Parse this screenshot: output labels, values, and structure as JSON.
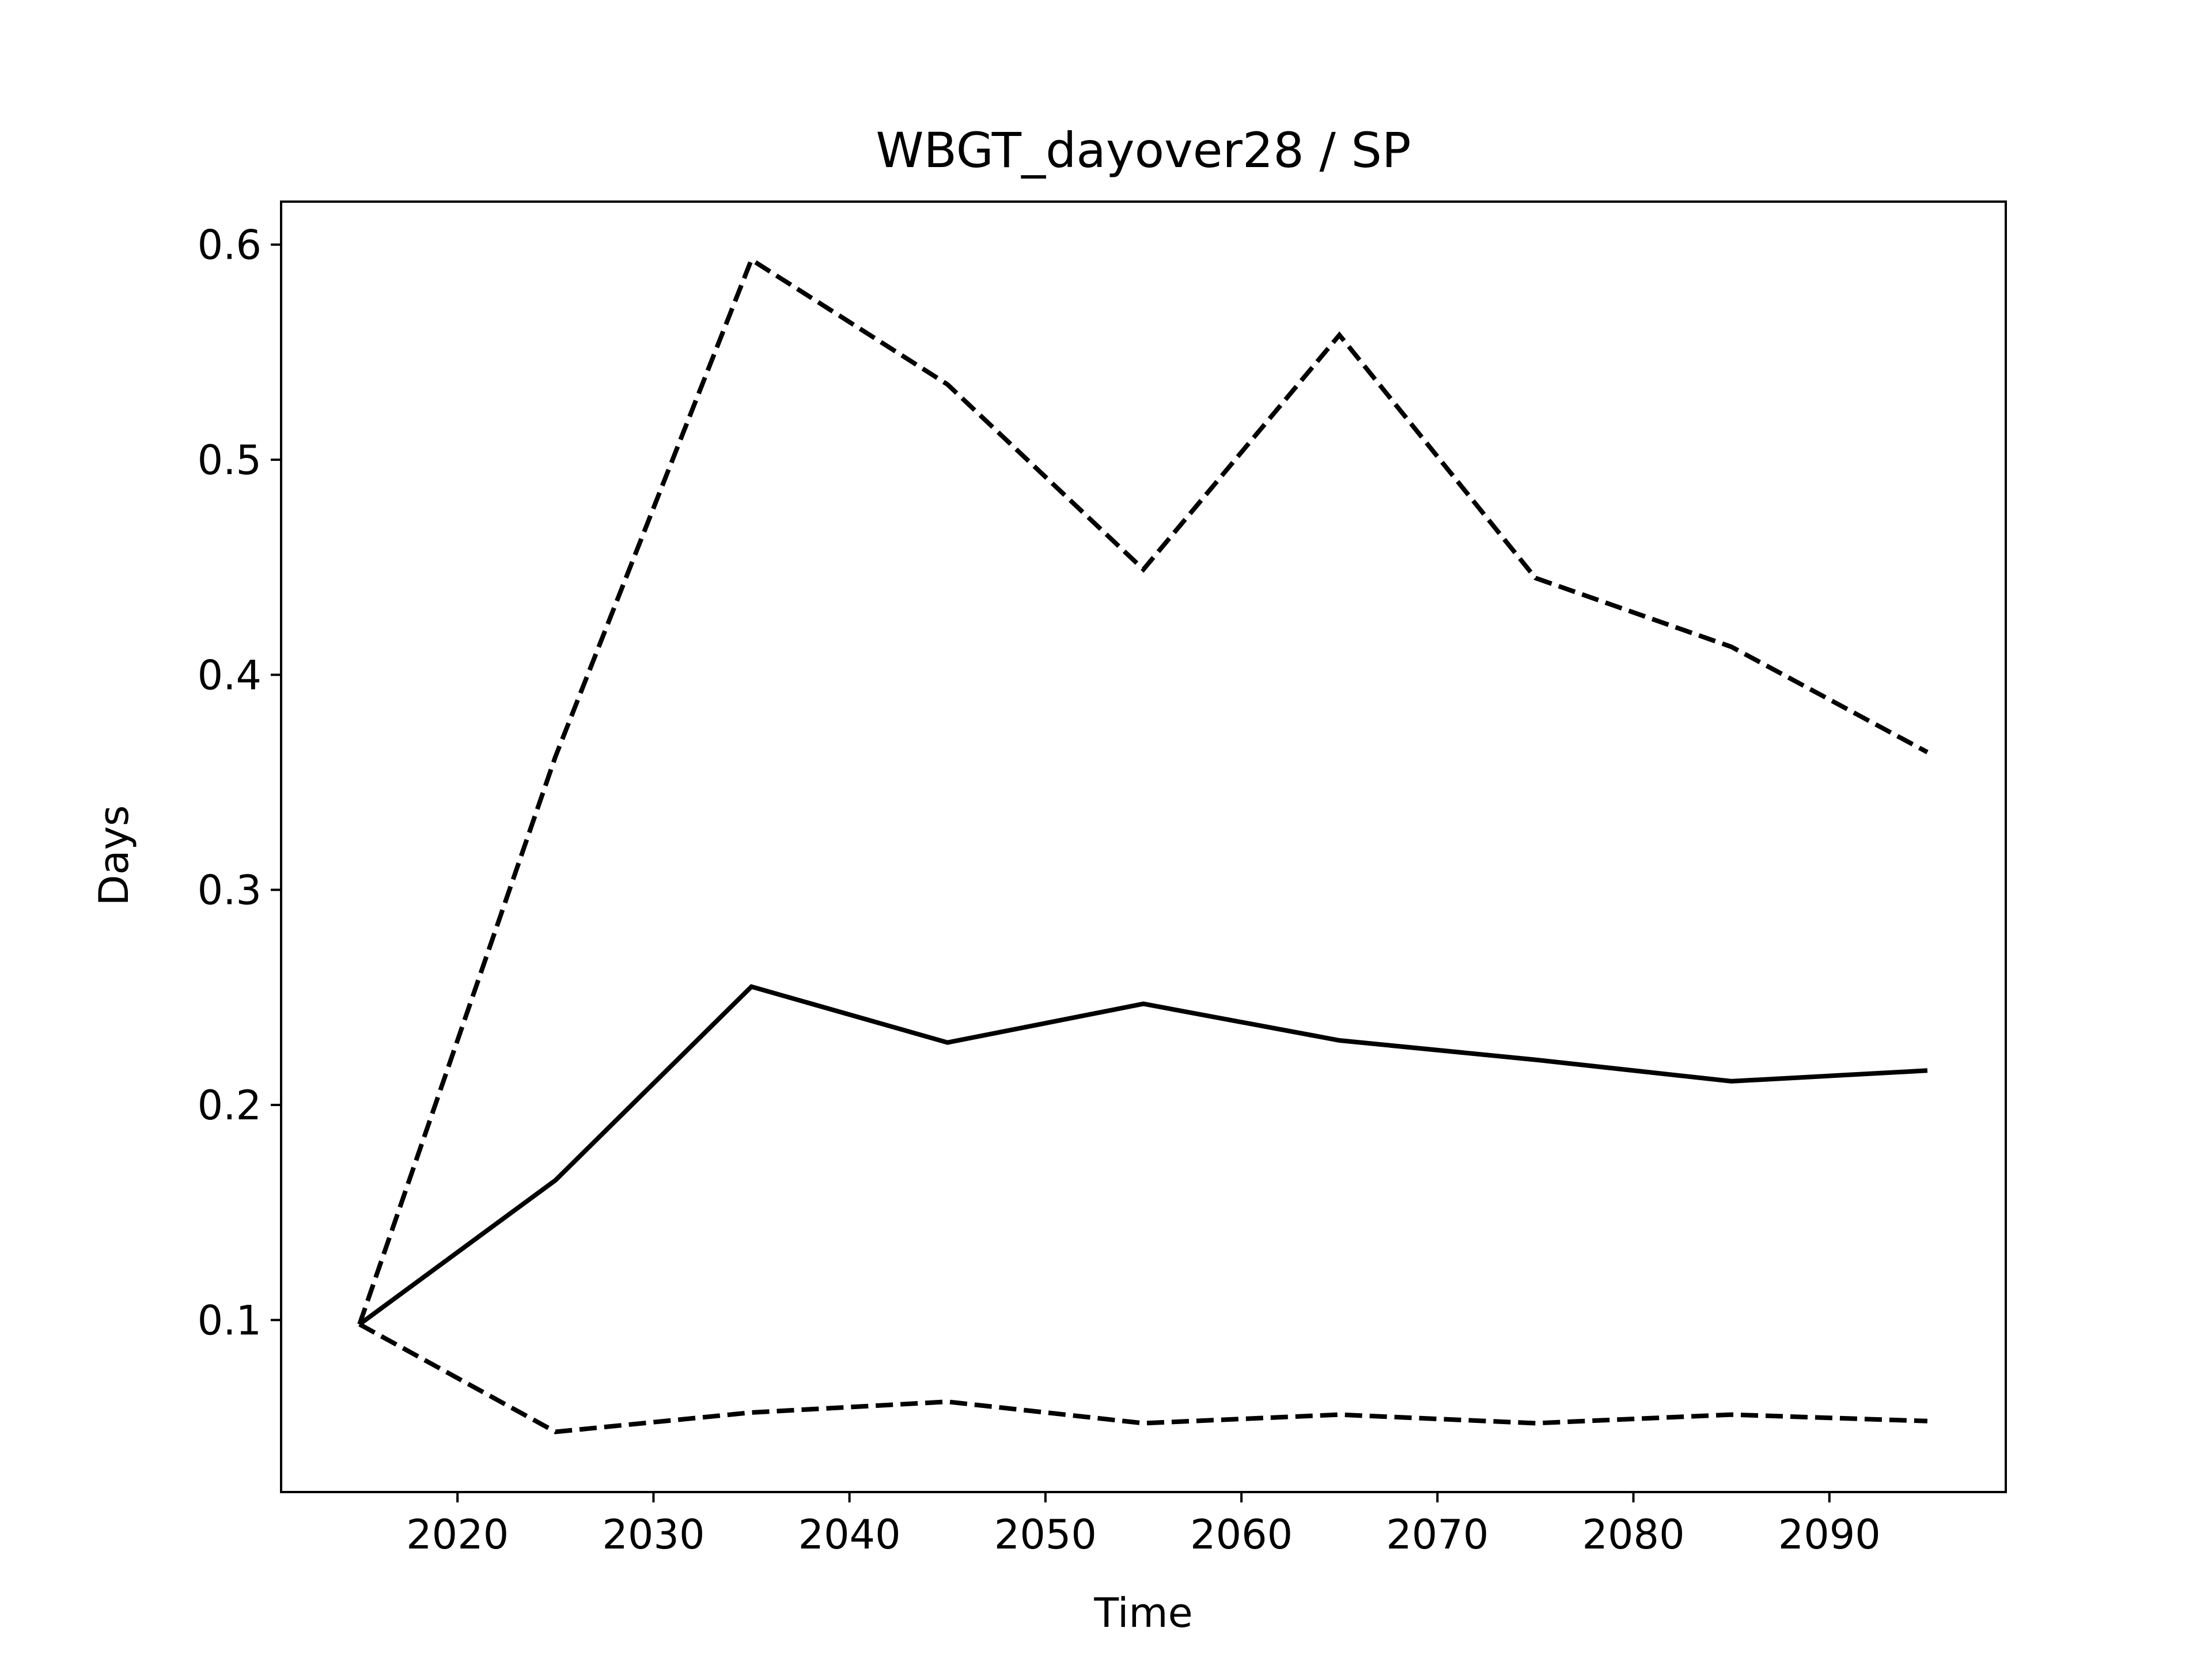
{
  "chart_data": {
    "type": "line",
    "title": "WBGT_dayover28 / SP",
    "xlabel": "Time",
    "ylabel": "Days",
    "xlim": [
      2011,
      2099
    ],
    "ylim": [
      0.02,
      0.62
    ],
    "x_ticks": [
      2020,
      2030,
      2040,
      2050,
      2060,
      2070,
      2080,
      2090
    ],
    "y_ticks": [
      0.1,
      0.2,
      0.3,
      0.4,
      0.5,
      0.6
    ],
    "grid": false,
    "legend": "none",
    "x": [
      2015,
      2025,
      2035,
      2045,
      2055,
      2065,
      2075,
      2085,
      2095
    ],
    "series": [
      {
        "style": "solid",
        "color": "#000000",
        "values": [
          0.098,
          0.165,
          0.255,
          0.229,
          0.247,
          0.23,
          0.221,
          0.211,
          0.216
        ]
      },
      {
        "style": "dashed",
        "color": "#000000",
        "values": [
          0.098,
          0.362,
          0.593,
          0.535,
          0.449,
          0.558,
          0.445,
          0.413,
          0.364
        ]
      },
      {
        "style": "dashed",
        "color": "#000000",
        "values": [
          0.098,
          0.048,
          0.057,
          0.062,
          0.052,
          0.056,
          0.052,
          0.056,
          0.053
        ]
      }
    ]
  }
}
